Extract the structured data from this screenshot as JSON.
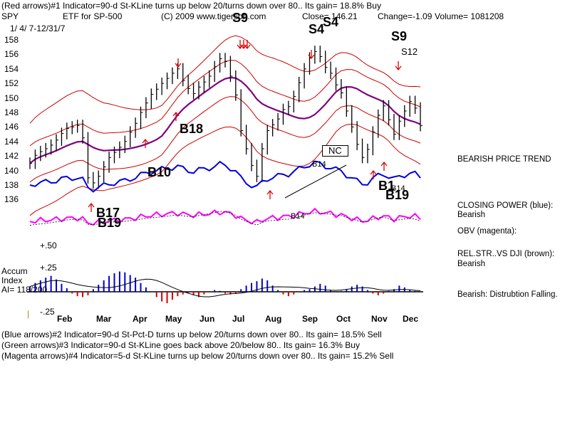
{
  "header": {
    "line1": "(Red arrows)#1 Indicator=90-d St-KLine turns up below 20/turns down over 80.. Its gain= 18.8% Buy",
    "ticker": "SPY",
    "etf_label": "ETF for SP-500",
    "copyright": "(C) 2009 www.tigersoft.com",
    "close": "Close= 146.21",
    "change": "Change=-1.09",
    "volume": "Volume= 1081208",
    "date_range": "1/ 4/ 7-12/31/7"
  },
  "footer": {
    "line1": "(Blue arrows)#2 Indicator=90-d St-Pct-D turns up below 20/turns down over 80.. Its gain= 18.5% Sell",
    "line2": "(Green arrows)#3 Indicator=90-d St-KLine goes back above 20/below 80.. Its gain= 16.3% Buy",
    "line3": "(Magenta arrows)#4 Indicator=5-d St-KLine turns up below 20/turns down over 80.. Its gain= 15.2% Sell"
  },
  "side_notes": {
    "price_trend": "BEARISH PRICE TREND",
    "closing_power_label": "CLOSING POWER (blue):",
    "closing_power_value": "Bearish",
    "obv_label": "OBV (magenta):",
    "relstr_label": "REL.STR..VS DJI (brown):",
    "relstr_value": "Bearish",
    "accum_note": "Bearish: Distrubtion Falling."
  },
  "accum": {
    "label1": "Accum",
    "label2": "Index",
    "ai": "AI= 118/200",
    "plus50": "+.50",
    "plus25": "+.25",
    "minus25": "-.25",
    "tick_mark": "|"
  },
  "signals": {
    "s9a": "S9",
    "s4a": "S4",
    "s4b": "S4",
    "s9b": "S9",
    "s12": "S12",
    "b18": "B18",
    "b10": "B10",
    "b17": "B17",
    "b19a": "B19",
    "b1": "B1",
    "b19b": "B19",
    "b14a": "B14",
    "b14b": "B14",
    "b14c": "B14",
    "nc": "NC"
  },
  "colors": {
    "price_bars": "#000000",
    "bands": "#cc0000",
    "ma": "#800080",
    "closing_power": "#0000dd",
    "obv": "#ff00ff",
    "accum_pos": "#0000cc",
    "accum_neg": "#cc0000",
    "arrows": "#dd0000"
  },
  "chart_data": {
    "type": "line",
    "y_ticks": [
      "158",
      "156",
      "154",
      "152",
      "150",
      "148",
      "146",
      "144",
      "142",
      "140",
      "138",
      "136"
    ],
    "x_ticks": [
      "Feb",
      "Mar",
      "Apr",
      "May",
      "Jun",
      "Jul",
      "Aug",
      "Sep",
      "Oct",
      "Nov",
      "Dec"
    ],
    "ylim": [
      135,
      159
    ],
    "series": [
      {
        "key": "price_close",
        "values": [
          141.0,
          142.1,
          142.6,
          143.0,
          143.5,
          144.2,
          145.1,
          145.8,
          146.0,
          146.2,
          144.5,
          139.0,
          138.3,
          139.2,
          140.5,
          141.8,
          142.5,
          143.2,
          144.0,
          145.3,
          146.5,
          148.0,
          149.3,
          150.5,
          151.2,
          152.0,
          152.7,
          153.4,
          154.0,
          152.4,
          151.3,
          150.6,
          151.5,
          152.2,
          153.0,
          154.3,
          155.4,
          155.0,
          153.0,
          150.4,
          145.5,
          143.0,
          140.7,
          139.2,
          143.0,
          145.5,
          146.3,
          147.1,
          148.4,
          148.8,
          150.2,
          152.1,
          154.0,
          155.5,
          156.4,
          155.7,
          154.2,
          153.4,
          151.8,
          150.7,
          148.2,
          146.0,
          143.6,
          141.8,
          142.9,
          145.3,
          147.6,
          148.9,
          147.0,
          145.0,
          146.8,
          148.2,
          149.5,
          148.6,
          146.2
        ]
      }
    ],
    "accum_index": [
      0.06,
      0.1,
      0.13,
      0.16,
      0.18,
      0.14,
      0.09,
      0.04,
      -0.02,
      -0.05,
      -0.06,
      -0.04,
      0.03,
      0.08,
      0.13,
      0.18,
      0.21,
      0.23,
      0.22,
      0.19,
      0.16,
      0.1,
      0.05,
      0.0,
      -0.06,
      -0.11,
      -0.13,
      -0.09,
      -0.05,
      -0.03,
      -0.02,
      -0.04,
      -0.06,
      -0.03,
      0.0,
      0.02,
      0.01,
      -0.02,
      -0.03,
      -0.02,
      0.03,
      0.07,
      0.1,
      0.12,
      0.15,
      0.13,
      0.07,
      0.02,
      -0.03,
      -0.05,
      -0.03,
      0.0,
      0.02,
      0.03,
      0.06,
      0.09,
      0.07,
      0.02,
      0.0,
      0.01,
      0.03,
      0.06,
      0.08,
      0.06,
      0.02,
      -0.02,
      -0.04,
      -0.02,
      0.01,
      0.03,
      0.07,
      0.05,
      0.02,
      0.01,
      0.0
    ]
  }
}
